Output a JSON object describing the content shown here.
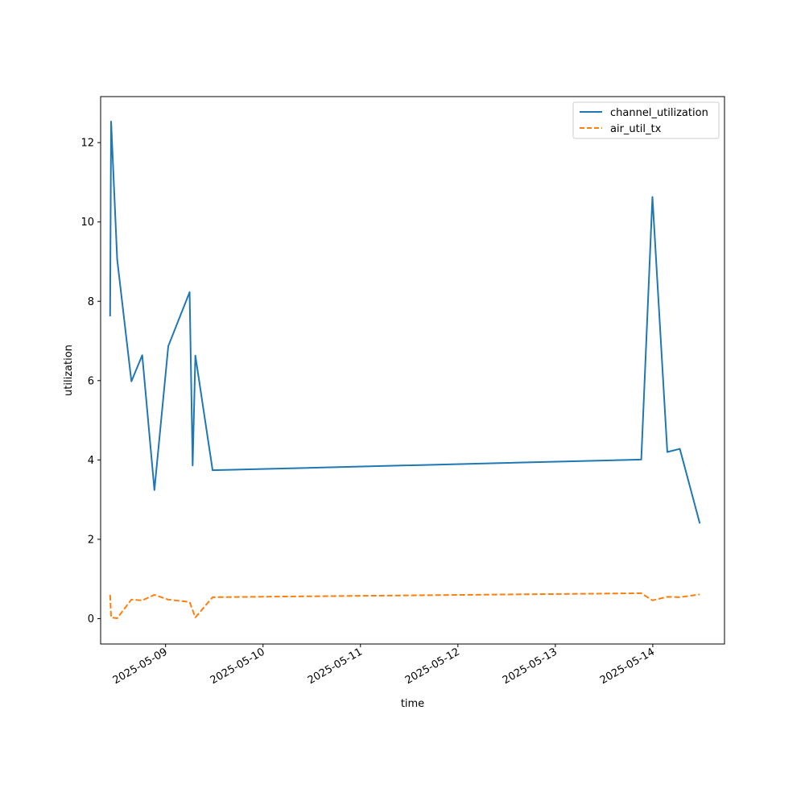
{
  "chart_data": {
    "type": "line",
    "title": "",
    "xlabel": "time",
    "ylabel": "utilization",
    "x_axis_type": "datetime",
    "x_ticks": [
      "2025-05-09",
      "2025-05-10",
      "2025-05-11",
      "2025-05-12",
      "2025-05-13",
      "2025-05-14"
    ],
    "y_ticks": [
      0,
      2,
      4,
      6,
      8,
      10,
      12
    ],
    "xlim": [
      "2025-05-08 08:00",
      "2025-05-14 17:40"
    ],
    "ylim": [
      -0.64,
      13.16
    ],
    "grid": false,
    "legend_position": "top-right",
    "series": [
      {
        "name": "channel_utilization",
        "color": "#1f77b4",
        "line_style": "solid",
        "points": [
          {
            "x": "2025-05-08 10:20",
            "y": 7.62
          },
          {
            "x": "2025-05-08 10:35",
            "y": 12.53
          },
          {
            "x": "2025-05-08 12:05",
            "y": 9.05
          },
          {
            "x": "2025-05-08 15:35",
            "y": 5.98
          },
          {
            "x": "2025-05-08 18:15",
            "y": 6.64
          },
          {
            "x": "2025-05-08 21:15",
            "y": 3.24
          },
          {
            "x": "2025-05-09 00:40",
            "y": 6.87
          },
          {
            "x": "2025-05-09 05:55",
            "y": 8.23
          },
          {
            "x": "2025-05-09 06:40",
            "y": 3.86
          },
          {
            "x": "2025-05-09 07:20",
            "y": 6.63
          },
          {
            "x": "2025-05-09 11:35",
            "y": 3.74
          },
          {
            "x": "2025-05-13 21:10",
            "y": 4.01
          },
          {
            "x": "2025-05-13 23:55",
            "y": 10.63
          },
          {
            "x": "2025-05-14 03:35",
            "y": 4.2
          },
          {
            "x": "2025-05-14 06:40",
            "y": 4.28
          },
          {
            "x": "2025-05-14 11:35",
            "y": 2.4
          }
        ]
      },
      {
        "name": "air_util_tx",
        "color": "#ff7f0e",
        "line_style": "dashed",
        "points": [
          {
            "x": "2025-05-08 10:20",
            "y": 0.6
          },
          {
            "x": "2025-05-08 10:35",
            "y": 0.03
          },
          {
            "x": "2025-05-08 12:05",
            "y": 0.01
          },
          {
            "x": "2025-05-08 15:35",
            "y": 0.48
          },
          {
            "x": "2025-05-08 18:15",
            "y": 0.46
          },
          {
            "x": "2025-05-08 21:15",
            "y": 0.6
          },
          {
            "x": "2025-05-09 00:40",
            "y": 0.48
          },
          {
            "x": "2025-05-09 05:55",
            "y": 0.42
          },
          {
            "x": "2025-05-09 07:20",
            "y": 0.03
          },
          {
            "x": "2025-05-09 11:35",
            "y": 0.54
          },
          {
            "x": "2025-05-13 21:10",
            "y": 0.64
          },
          {
            "x": "2025-05-13 23:55",
            "y": 0.46
          },
          {
            "x": "2025-05-14 03:35",
            "y": 0.55
          },
          {
            "x": "2025-05-14 06:40",
            "y": 0.54
          },
          {
            "x": "2025-05-14 11:35",
            "y": 0.61
          }
        ]
      }
    ]
  }
}
